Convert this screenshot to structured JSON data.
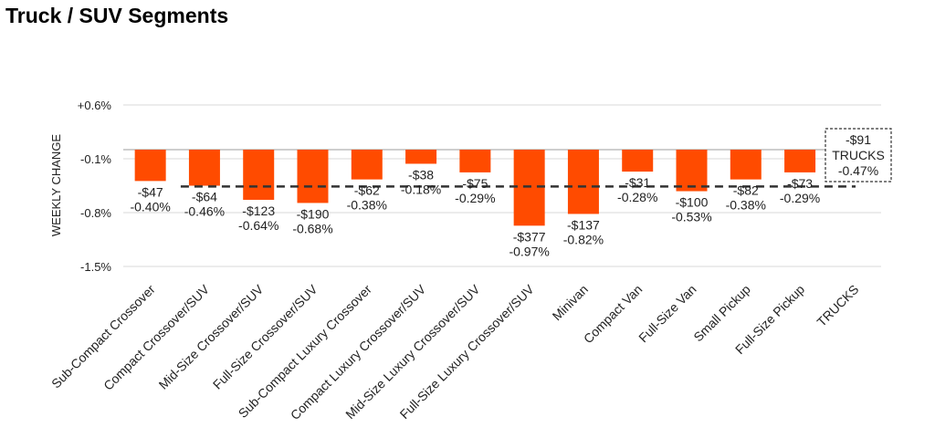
{
  "page_title": "Truck / SUV Segments",
  "chart_data": {
    "type": "bar",
    "title": "Truck / SUV Segments",
    "ylabel": "WEEKLY CHANGE",
    "xlabel": "",
    "ylim": [
      -1.5,
      0.6
    ],
    "y_ticks": [
      {
        "value": 0.6,
        "label": "+0.6%"
      },
      {
        "value": -0.1,
        "label": "-0.1%"
      },
      {
        "value": -0.8,
        "label": "-0.8%"
      },
      {
        "value": -1.5,
        "label": "-1.5%"
      }
    ],
    "grid": true,
    "categories": [
      "Sub-Compact Crossover",
      "Compact Crossover/SUV",
      "Mid-Size Crossover/SUV",
      "Full-Size Crossover/SUV",
      "Sub-Compact Luxury Crossover",
      "Compact Luxury Crossover/SUV",
      "Mid-Size Luxury Crossover/SUV",
      "Full-Size Luxury Crossover/SUV",
      "Minivan",
      "Compact Van",
      "Full-Size Van",
      "Small Pickup",
      "Full-Size Pickup",
      "TRUCKS"
    ],
    "values": [
      -0.4,
      -0.46,
      -0.64,
      -0.68,
      -0.38,
      -0.18,
      -0.29,
      -0.97,
      -0.82,
      -0.28,
      -0.53,
      -0.38,
      -0.29,
      null
    ],
    "dollar_labels": [
      "-$47",
      "-$64",
      "-$123",
      "-$190",
      "-$62",
      "-$38",
      "-$75",
      "-$377",
      "-$137",
      "-$31",
      "-$100",
      "-$82",
      "-$73",
      null
    ],
    "pct_labels": [
      "-0.40%",
      "-0.46%",
      "-0.64%",
      "-0.68%",
      "-0.38%",
      "-0.18%",
      "-0.29%",
      "-0.97%",
      "-0.82%",
      "-0.28%",
      "-0.53%",
      "-0.38%",
      "-0.29%",
      null
    ],
    "average": {
      "value": -0.47,
      "box_lines": [
        "-$91",
        "TRUCKS",
        "-0.47%"
      ]
    },
    "bar_color": "#ff4b00",
    "average_line_color": "#333333"
  }
}
